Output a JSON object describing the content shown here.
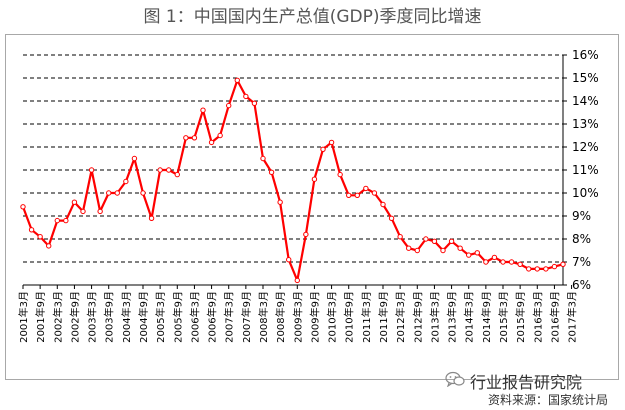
{
  "title": "图 1：中国国内生产总值(GDP)季度同比增速",
  "watermark": "行业报告研究院",
  "watermark_icon": "wechat-icon",
  "source": "资料来源：国家统计局",
  "colors": {
    "line": "#ff0000",
    "marker_fill": "#ffffff",
    "grid": "#000000",
    "axis": "#000000",
    "title": "#555555"
  },
  "chart_data": {
    "type": "line",
    "title": "图 1：中国国内生产总值(GDP)季度同比增速",
    "xlabel": "",
    "ylabel": "",
    "ylim": [
      6,
      16
    ],
    "y_axis_position": "right",
    "y_ticks": [
      "6%",
      "7%",
      "8%",
      "9%",
      "10%",
      "11%",
      "12%",
      "13%",
      "14%",
      "15%",
      "16%"
    ],
    "grid": "horizontal dashed",
    "legend": "none",
    "x_tick_labels": [
      "2001年3月",
      "2001年9月",
      "2002年3月",
      "2002年9月",
      "2003年3月",
      "2003年9月",
      "2004年3月",
      "2004年9月",
      "2005年3月",
      "2005年9月",
      "2006年3月",
      "2006年9月",
      "2007年3月",
      "2007年9月",
      "2008年3月",
      "2008年9月",
      "2009年3月",
      "2009年9月",
      "2010年3月",
      "2010年9月",
      "2011年3月",
      "2011年9月",
      "2012年3月",
      "2012年9月",
      "2013年3月",
      "2013年9月",
      "2014年3月",
      "2014年9月",
      "2015年3月",
      "2015年9月",
      "2016年3月",
      "2016年9月",
      "2017年3月"
    ],
    "series": [
      {
        "values": [
          9.4,
          8.4,
          8.1,
          7.7,
          8.8,
          8.8,
          9.6,
          9.2,
          11.0,
          9.2,
          10.0,
          10.0,
          10.5,
          11.5,
          10.0,
          8.9,
          11.0,
          11.0,
          10.8,
          12.4,
          12.4,
          13.6,
          12.2,
          12.5,
          13.8,
          14.9,
          14.2,
          13.9,
          11.5,
          10.9,
          9.6,
          7.1,
          6.2,
          8.2,
          10.6,
          11.9,
          12.2,
          10.8,
          9.9,
          9.9,
          10.2,
          10.0,
          9.5,
          8.9,
          8.1,
          7.6,
          7.5,
          8.0,
          7.9,
          7.5,
          7.9,
          7.6,
          7.3,
          7.4,
          7.0,
          7.2,
          7.0,
          7.0,
          6.9,
          6.7,
          6.7,
          6.7,
          6.8,
          6.9
        ]
      }
    ]
  }
}
